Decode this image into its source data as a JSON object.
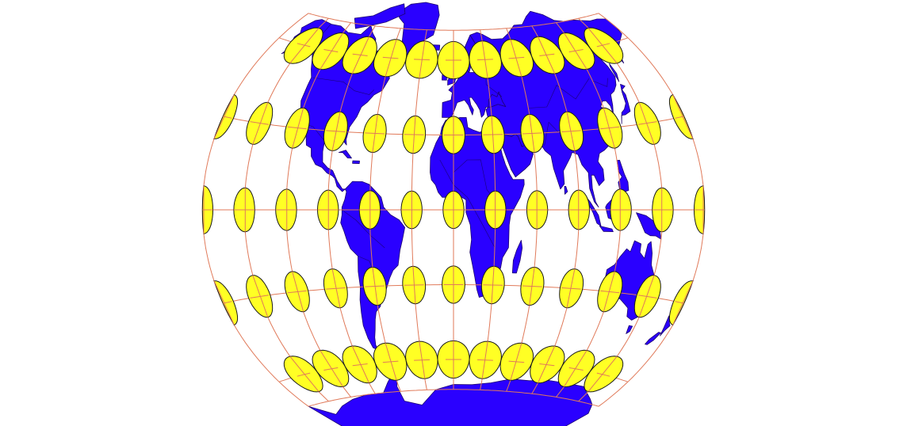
{
  "map": {
    "colors": {
      "background": "#ffffff",
      "land": "#2a00ff",
      "coastline": "#1c006e",
      "graticule": "#e07a5a",
      "tissot_fill": "#ffff24",
      "tissot_stroke": "#1a1a1a"
    },
    "graticule": {
      "longitudes_deg": [
        -180,
        -150,
        -120,
        -90,
        -60,
        -30,
        0,
        30,
        60,
        90,
        120,
        150,
        180
      ],
      "latitudes_deg": [
        -60,
        -30,
        0,
        30,
        60
      ]
    },
    "tissot_indicatrix": {
      "center_longitudes_deg": [
        -150,
        -120,
        -90,
        -60,
        -30,
        0,
        30,
        60,
        90,
        120,
        150
      ],
      "edge_longitudes_deg": [
        -180,
        180
      ],
      "center_latitudes_deg": [
        -60,
        -30,
        0,
        30,
        60
      ],
      "circle_radius_deg": 7.5
    }
  }
}
